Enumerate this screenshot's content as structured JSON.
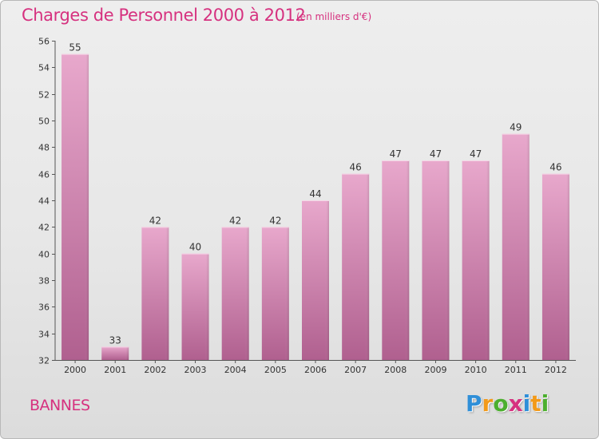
{
  "header": {
    "title": "Charges de Personnel 2000 à 2012",
    "subtitle": "(en milliers d'€)"
  },
  "footer": {
    "commune": "BANNES",
    "logo_text": "Proxiti",
    "logo_letters": [
      {
        "char": "P",
        "color": "#2f8fd8"
      },
      {
        "char": "r",
        "color": "#f29a1a"
      },
      {
        "char": "o",
        "color": "#4caf2e"
      },
      {
        "char": "x",
        "color": "#d6317f"
      },
      {
        "char": "i",
        "color": "#2f8fd8"
      },
      {
        "char": "t",
        "color": "#f29a1a"
      },
      {
        "char": "i",
        "color": "#4caf2e"
      }
    ]
  },
  "colors": {
    "accent": "#d6317f",
    "bar_top": "#e8a8cc",
    "bar_bottom": "#b0608f",
    "axis": "#555555"
  },
  "chart_data": {
    "type": "bar",
    "title": "Charges de Personnel 2000 à 2012",
    "subtitle": "(en milliers d'€)",
    "xlabel": "",
    "ylabel": "",
    "categories": [
      "2000",
      "2001",
      "2002",
      "2003",
      "2004",
      "2005",
      "2006",
      "2007",
      "2008",
      "2009",
      "2010",
      "2011",
      "2012"
    ],
    "values": [
      55,
      33,
      42,
      40,
      42,
      42,
      44,
      46,
      47,
      47,
      47,
      49,
      46
    ],
    "ylim": [
      32,
      56
    ],
    "yticks": [
      32,
      34,
      36,
      38,
      40,
      42,
      44,
      46,
      48,
      50,
      52,
      54,
      56
    ],
    "grid": false,
    "data_labels": true
  }
}
